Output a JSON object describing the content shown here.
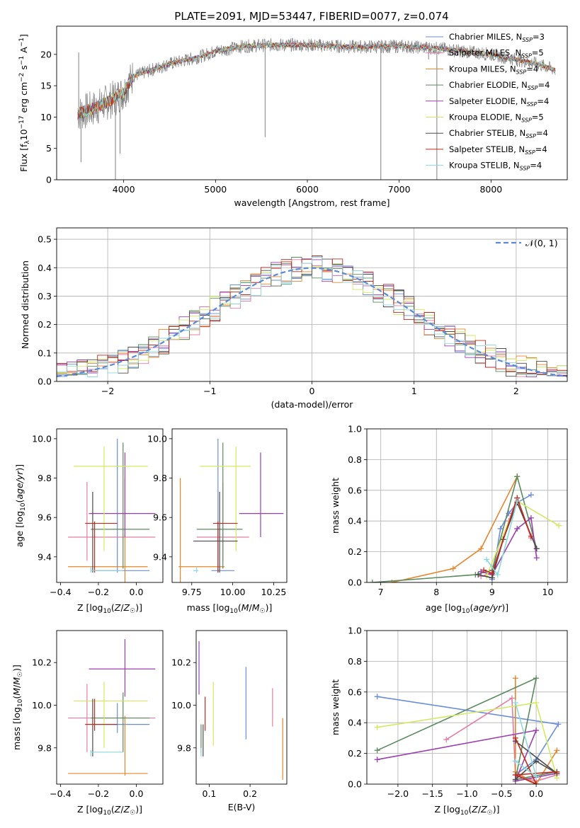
{
  "title": "PLATE=2091, MJD=53447, FIBERID=0077, z=0.074",
  "colors": {
    "Chabrier MILES": "#6a8edb",
    "Salpeter MILES": "#e47da5",
    "Kroupa MILES": "#e6862c",
    "Chabrier ELODIE": "#5b8a5e",
    "Salpeter ELODIE": "#9b3fb0",
    "Kroupa ELODIE": "#d2ea62",
    "Chabrier STELIB": "#4c4c4c",
    "Salpeter STELIB": "#c22a1e",
    "Kroupa STELIB": "#8fd8dc",
    "data": "#808080",
    "normal": "#5b8bd8"
  },
  "chart_data": [
    {
      "type": "line",
      "panel": "spectrum",
      "xlabel": "wavelength [Angstrom, rest frame]",
      "ylabel": "Flux [f$_\\lambda$10$^{-17}$ erg cm$^{-2}$ s$^{-1}$ A$^{-1}$]",
      "ylabel_parts": [
        "Flux [f",
        "λ",
        "10",
        "−17",
        " erg cm",
        "−2",
        " s",
        "−1",
        " A",
        "−1",
        "]"
      ],
      "xlim": [
        3270,
        8830
      ],
      "ylim": [
        0,
        24.5
      ],
      "xticks": [
        4000,
        5000,
        6000,
        7000,
        8000
      ],
      "yticks": [
        0,
        5,
        10,
        15,
        20
      ],
      "legend": "top-right",
      "legend_entries": [
        {
          "name": "Chabrier MILES",
          "nssp": "3"
        },
        {
          "name": "Salpeter MILES",
          "nssp": "5"
        },
        {
          "name": "Kroupa MILES",
          "nssp": "4"
        },
        {
          "name": "Chabrier ELODIE",
          "nssp": "4"
        },
        {
          "name": "Salpeter ELODIE",
          "nssp": "4"
        },
        {
          "name": "Kroupa ELODIE",
          "nssp": "5"
        },
        {
          "name": "Chabrier STELIB",
          "nssp": "4"
        },
        {
          "name": "Salpeter STELIB",
          "nssp": "4"
        },
        {
          "name": "Kroupa STELIB",
          "nssp": "4"
        }
      ],
      "nssp_label": "N",
      "nssp_sub": "SSP",
      "continuum": [
        [
          3500,
          10.5
        ],
        [
          3700,
          11.5
        ],
        [
          3900,
          13.0
        ],
        [
          4000,
          14.0
        ],
        [
          4100,
          16.5
        ],
        [
          4300,
          17.5
        ],
        [
          4500,
          18.5
        ],
        [
          4800,
          19.5
        ],
        [
          5000,
          20.5
        ],
        [
          5300,
          21.3
        ],
        [
          5600,
          21.5
        ],
        [
          6000,
          21.5
        ],
        [
          6500,
          21.2
        ],
        [
          7000,
          21.3
        ],
        [
          7400,
          21.0
        ],
        [
          8000,
          20.0
        ],
        [
          8500,
          18.5
        ],
        [
          8700,
          17.5
        ]
      ],
      "data_spikes": [
        [
          3510,
          20.3
        ],
        [
          3535,
          2.8
        ],
        [
          3960,
          4.2
        ],
        [
          5540,
          6.8
        ],
        [
          6800,
          0.0
        ],
        [
          7410,
          0.0
        ],
        [
          3910,
          0.0
        ],
        [
          7320,
          19.2
        ]
      ]
    },
    {
      "type": "line",
      "panel": "residual-histogram",
      "xlabel": "(data-model)/error",
      "ylabel": "Normed distribution",
      "xlim": [
        -2.5,
        2.5
      ],
      "ylim": [
        0,
        0.54
      ],
      "xticks": [
        -2,
        -1,
        0,
        1,
        2
      ],
      "yticks": [
        0.0,
        0.1,
        0.2,
        0.3,
        0.4,
        0.5
      ],
      "legend_label": "𝒩(0, 1)",
      "legend": "top-right",
      "bin_width": 0.1
    },
    {
      "type": "scatter",
      "panel": "age-vs-metallicity",
      "xlabel": "Z [log10(Z/Z☉)]",
      "ylabel": "age  [log10(age/yr)]",
      "xlim": [
        -0.42,
        0.14
      ],
      "ylim": [
        9.27,
        10.05
      ],
      "xticks": [
        -0.4,
        -0.2,
        0.0
      ],
      "yticks": [
        9.4,
        9.6,
        9.8,
        10.0
      ]
    },
    {
      "type": "scatter",
      "panel": "age-vs-mass",
      "xlabel": "mass [log10(M/M☉)]",
      "ylabel": "",
      "xlim": [
        9.63,
        10.33
      ],
      "ylim": [
        9.27,
        10.05
      ],
      "xticks": [
        9.75,
        10.0,
        10.25
      ],
      "yticks": [
        9.4,
        9.6,
        9.8,
        10.0
      ]
    },
    {
      "type": "line",
      "panel": "mass-weight-vs-age",
      "xlabel": "age  [log10(age/yr)]",
      "ylabel": "mass weight",
      "xlim": [
        6.75,
        10.35
      ],
      "ylim": [
        0,
        1.0
      ],
      "xticks": [
        7,
        8,
        9,
        10
      ],
      "yticks": [
        0.0,
        0.2,
        0.4,
        0.6,
        0.8,
        1.0
      ],
      "grid": true
    },
    {
      "type": "scatter",
      "panel": "mass-vs-metallicity",
      "xlabel": "Z [log10(Z/Z☉)]",
      "ylabel": "mass [log10(M/M☉)]",
      "xlim": [
        -0.42,
        0.14
      ],
      "ylim": [
        9.63,
        10.35
      ],
      "xticks": [
        -0.4,
        -0.2,
        0.0
      ],
      "yticks": [
        9.8,
        10.0,
        10.2
      ]
    },
    {
      "type": "scatter",
      "panel": "mass-vs-extinction",
      "xlabel": "E(B-V)",
      "ylabel": "",
      "xlim": [
        0.068,
        0.29
      ],
      "ylim": [
        9.63,
        10.35
      ],
      "xticks": [
        0.1,
        0.2
      ],
      "yticks": [
        9.8,
        10.0,
        10.2
      ]
    },
    {
      "type": "line",
      "panel": "mass-weight-vs-metallicity",
      "xlabel": "Z [log10(Z/Z☉)]",
      "ylabel": "mass weight",
      "xlim": [
        -2.45,
        0.45
      ],
      "ylim": [
        0,
        1.0
      ],
      "xticks": [
        -2.0,
        -1.5,
        -1.0,
        -0.5,
        0.0
      ],
      "yticks": [
        0.0,
        0.2,
        0.4,
        0.6,
        0.8,
        1.0
      ],
      "grid": true
    }
  ],
  "models": [
    {
      "name": "Chabrier MILES",
      "Z": [
        -0.1,
        -0.23,
        0.07
      ],
      "age": [
        9.33,
        9.32,
        10.0
      ],
      "mass": [
        9.91,
        9.87,
        10.01
      ],
      "ebv": 0.19,
      "ebv_mass": [
        9.84,
        10.18
      ],
      "age_weights": [
        [
          9.0,
          0.02
        ],
        [
          9.15,
          0.35
        ],
        [
          9.3,
          0.45
        ],
        [
          9.45,
          0.52
        ],
        [
          9.7,
          0.57
        ]
      ],
      "z_weights": [
        [
          -2.3,
          0.57
        ],
        [
          0.32,
          0.39
        ],
        [
          0.0,
          0.16
        ],
        [
          -0.3,
          0.06
        ],
        [
          0.0,
          0.0
        ]
      ]
    },
    {
      "name": "Salpeter MILES",
      "Z": [
        -0.26,
        -0.36,
        0.1
      ],
      "age": [
        9.5,
        9.38,
        9.78
      ],
      "mass": [
        9.94,
        9.78,
        10.1
      ],
      "ebv": 0.255,
      "ebv_mass": [
        9.9,
        10.08
      ],
      "age_weights": [
        [
          8.8,
          0.04
        ],
        [
          9.0,
          0.06
        ],
        [
          9.3,
          0.4
        ],
        [
          9.45,
          0.55
        ],
        [
          9.7,
          0.29
        ]
      ],
      "z_weights": [
        [
          -1.3,
          0.29
        ],
        [
          -0.35,
          0.56
        ],
        [
          -0.3,
          0.06
        ],
        [
          0.0,
          0.02
        ],
        [
          0.3,
          0.06
        ]
      ]
    },
    {
      "name": "Kroupa MILES",
      "Z": [
        -0.06,
        -0.36,
        0.06
      ],
      "age": [
        9.35,
        9.27,
        9.8
      ],
      "mass": [
        9.68,
        9.67,
        9.95
      ],
      "ebv": 0.28,
      "ebv_mass": [
        9.65,
        9.94
      ],
      "age_weights": [
        [
          7.2,
          0.0
        ],
        [
          8.3,
          0.09
        ],
        [
          8.8,
          0.22
        ],
        [
          9.45,
          0.69
        ]
      ],
      "z_weights": [
        [
          -0.3,
          0.69
        ],
        [
          -0.3,
          0.08
        ],
        [
          0.0,
          0.0
        ],
        [
          0.3,
          0.22
        ]
      ]
    },
    {
      "name": "Chabrier ELODIE",
      "Z": [
        -0.07,
        -0.24,
        0.07
      ],
      "age": [
        9.54,
        9.34,
        9.98
      ],
      "mass": [
        9.94,
        9.78,
        10.06
      ],
      "ebv": 0.08,
      "ebv_mass": [
        9.77,
        9.91
      ],
      "age_weights": [
        [
          6.85,
          0.0
        ],
        [
          8.7,
          0.05
        ],
        [
          9.0,
          0.08
        ],
        [
          9.45,
          0.69
        ],
        [
          9.8,
          0.22
        ]
      ],
      "z_weights": [
        [
          -2.3,
          0.22
        ],
        [
          0.0,
          0.69
        ],
        [
          -0.3,
          0.03
        ],
        [
          0.3,
          0.08
        ]
      ]
    },
    {
      "name": "Salpeter ELODIE",
      "Z": [
        -0.06,
        -0.25,
        0.1
      ],
      "age": [
        9.62,
        9.5,
        9.93
      ],
      "mass": [
        10.17,
        10.04,
        10.31
      ],
      "ebv": 0.075,
      "ebv_mass": [
        10.05,
        10.3
      ],
      "age_weights": [
        [
          8.8,
          0.07
        ],
        [
          9.0,
          0.05
        ],
        [
          9.45,
          0.35
        ],
        [
          9.7,
          0.42
        ],
        [
          9.8,
          0.16
        ]
      ],
      "z_weights": [
        [
          -2.3,
          0.16
        ],
        [
          0.0,
          0.35
        ],
        [
          -0.3,
          0.02
        ],
        [
          0.3,
          0.07
        ]
      ]
    },
    {
      "name": "Kroupa ELODIE",
      "Z": [
        -0.17,
        -0.33,
        0.06
      ],
      "age": [
        9.86,
        9.43,
        9.96
      ],
      "mass": [
        10.02,
        9.8,
        10.11
      ],
      "ebv": 0.11,
      "ebv_mass": [
        9.81,
        10.11
      ],
      "age_weights": [
        [
          8.9,
          0.04
        ],
        [
          9.45,
          0.53
        ],
        [
          10.2,
          0.37
        ]
      ],
      "z_weights": [
        [
          -2.3,
          0.37
        ],
        [
          0.0,
          0.53
        ],
        [
          0.3,
          0.04
        ]
      ]
    },
    {
      "name": "Chabrier STELIB",
      "Z": [
        -0.23,
        -0.23,
        -0.23
      ],
      "age": [
        9.48,
        9.32,
        9.73
      ],
      "mass": [
        9.92,
        9.76,
        10.03
      ],
      "ebv": 0.085,
      "ebv_mass": [
        9.76,
        9.91
      ],
      "age_weights": [
        [
          8.75,
          0.05
        ],
        [
          9.0,
          0.03
        ],
        [
          9.2,
          0.28
        ],
        [
          9.45,
          0.52
        ],
        [
          9.8,
          0.22
        ]
      ],
      "z_weights": [
        [
          -0.3,
          0.03
        ],
        [
          0.0,
          0.15
        ],
        [
          0.3,
          0.07
        ],
        [
          -0.3,
          0.28
        ]
      ]
    },
    {
      "name": "Salpeter STELIB",
      "Z": [
        -0.22,
        -0.27,
        -0.1
      ],
      "age": [
        9.57,
        9.32,
        9.58
      ],
      "mass": [
        9.91,
        9.88,
        10.03
      ],
      "ebv": 0.09,
      "ebv_mass": [
        9.88,
        10.04
      ],
      "age_weights": [
        [
          8.85,
          0.08
        ],
        [
          9.0,
          0.06
        ],
        [
          9.45,
          0.55
        ],
        [
          9.7,
          0.3
        ]
      ],
      "z_weights": [
        [
          -0.3,
          0.3
        ],
        [
          0.0,
          0.0
        ],
        [
          -0.3,
          0.06
        ],
        [
          0.3,
          0.08
        ]
      ]
    },
    {
      "name": "Kroupa STELIB",
      "Z": [
        -0.24,
        -0.24,
        -0.07
      ],
      "age": [
        9.33,
        9.32,
        9.35
      ],
      "mass": [
        9.78,
        9.76,
        9.79
      ],
      "ebv": 0.08,
      "ebv_mass": [
        9.76,
        9.8
      ],
      "age_weights": [
        [
          8.9,
          0.15
        ],
        [
          9.1,
          0.05
        ],
        [
          9.45,
          0.53
        ]
      ],
      "z_weights": [
        [
          -0.3,
          0.15
        ],
        [
          0.0,
          0.05
        ],
        [
          -0.3,
          0.53
        ]
      ]
    }
  ]
}
